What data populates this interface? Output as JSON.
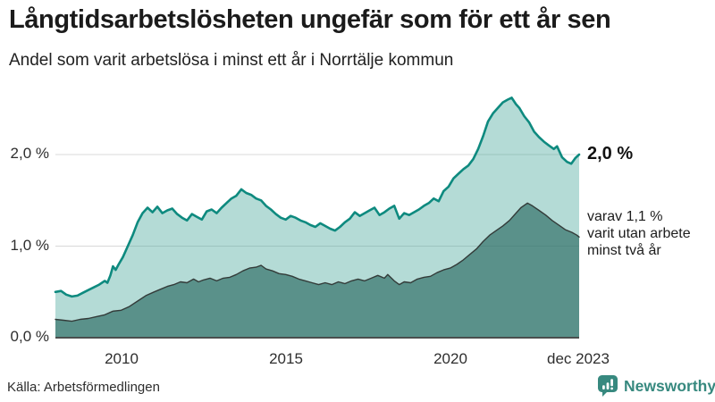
{
  "header": {
    "title": "Långtidsarbetslösheten ungefär som för ett år sen",
    "subtitle": "Andel som varit arbetslösa i minst ett år i Norrtälje kommun"
  },
  "footer": {
    "source": "Källa: Arbetsförmedlingen",
    "brand": "Newsworthy"
  },
  "chart_data": {
    "type": "area",
    "title": "Långtidsarbetslösheten ungefär som för ett år sen",
    "subtitle": "Andel som varit arbetslösa i minst ett år i Norrtälje kommun",
    "x_domain": [
      2008.0,
      2023.92
    ],
    "ylim": [
      0,
      2.72
    ],
    "grid": true,
    "x_ticks": [
      {
        "value": 2010,
        "label": "2010"
      },
      {
        "value": 2015,
        "label": "2015"
      },
      {
        "value": 2020,
        "label": "2020"
      },
      {
        "value": 2023.92,
        "label": "dec 2023"
      }
    ],
    "y_ticks": [
      {
        "value": 0,
        "label": "0,0 %"
      },
      {
        "value": 1,
        "label": "1,0 %"
      },
      {
        "value": 2,
        "label": "2,0 %"
      }
    ],
    "colors": {
      "grid": "#d8d8d8",
      "axis": "#4a4f4e",
      "accent_teal": "#0e8a7f",
      "brand_teal": "#37897f"
    },
    "annotations": {
      "end_total": "2,0 %",
      "end_subset": "varav 1,1 %\nvarit utan arbete\nminst två år"
    },
    "series": [
      {
        "name": "Andel arbetslösa minst ett år",
        "end_value": 2.0,
        "color": "#0e8a7f",
        "fill": "rgba(77,170,157,0.42)",
        "points": [
          [
            2008.0,
            0.5
          ],
          [
            2008.17,
            0.51
          ],
          [
            2008.33,
            0.47
          ],
          [
            2008.5,
            0.45
          ],
          [
            2008.67,
            0.46
          ],
          [
            2008.83,
            0.49
          ],
          [
            2009.0,
            0.52
          ],
          [
            2009.17,
            0.55
          ],
          [
            2009.33,
            0.58
          ],
          [
            2009.5,
            0.62
          ],
          [
            2009.58,
            0.6
          ],
          [
            2009.67,
            0.68
          ],
          [
            2009.75,
            0.78
          ],
          [
            2009.83,
            0.74
          ],
          [
            2009.92,
            0.8
          ],
          [
            2010.05,
            0.88
          ],
          [
            2010.2,
            1.0
          ],
          [
            2010.35,
            1.12
          ],
          [
            2010.5,
            1.26
          ],
          [
            2010.65,
            1.36
          ],
          [
            2010.8,
            1.42
          ],
          [
            2010.95,
            1.37
          ],
          [
            2011.1,
            1.43
          ],
          [
            2011.25,
            1.36
          ],
          [
            2011.4,
            1.39
          ],
          [
            2011.55,
            1.41
          ],
          [
            2011.7,
            1.35
          ],
          [
            2011.85,
            1.31
          ],
          [
            2012.0,
            1.28
          ],
          [
            2012.15,
            1.35
          ],
          [
            2012.3,
            1.32
          ],
          [
            2012.45,
            1.29
          ],
          [
            2012.6,
            1.38
          ],
          [
            2012.75,
            1.4
          ],
          [
            2012.9,
            1.36
          ],
          [
            2013.05,
            1.42
          ],
          [
            2013.2,
            1.47
          ],
          [
            2013.35,
            1.52
          ],
          [
            2013.5,
            1.55
          ],
          [
            2013.65,
            1.62
          ],
          [
            2013.8,
            1.58
          ],
          [
            2013.95,
            1.56
          ],
          [
            2014.1,
            1.52
          ],
          [
            2014.25,
            1.5
          ],
          [
            2014.4,
            1.44
          ],
          [
            2014.55,
            1.4
          ],
          [
            2014.7,
            1.35
          ],
          [
            2014.85,
            1.31
          ],
          [
            2015.0,
            1.29
          ],
          [
            2015.15,
            1.33
          ],
          [
            2015.3,
            1.31
          ],
          [
            2015.45,
            1.28
          ],
          [
            2015.6,
            1.26
          ],
          [
            2015.75,
            1.23
          ],
          [
            2015.9,
            1.21
          ],
          [
            2016.05,
            1.25
          ],
          [
            2016.2,
            1.22
          ],
          [
            2016.35,
            1.19
          ],
          [
            2016.5,
            1.17
          ],
          [
            2016.65,
            1.21
          ],
          [
            2016.8,
            1.26
          ],
          [
            2016.95,
            1.3
          ],
          [
            2017.1,
            1.37
          ],
          [
            2017.25,
            1.33
          ],
          [
            2017.4,
            1.36
          ],
          [
            2017.55,
            1.39
          ],
          [
            2017.7,
            1.42
          ],
          [
            2017.85,
            1.34
          ],
          [
            2018.0,
            1.37
          ],
          [
            2018.15,
            1.41
          ],
          [
            2018.3,
            1.44
          ],
          [
            2018.45,
            1.3
          ],
          [
            2018.6,
            1.36
          ],
          [
            2018.75,
            1.34
          ],
          [
            2018.9,
            1.37
          ],
          [
            2019.05,
            1.4
          ],
          [
            2019.2,
            1.44
          ],
          [
            2019.35,
            1.47
          ],
          [
            2019.5,
            1.52
          ],
          [
            2019.65,
            1.49
          ],
          [
            2019.8,
            1.6
          ],
          [
            2019.95,
            1.65
          ],
          [
            2020.1,
            1.74
          ],
          [
            2020.25,
            1.79
          ],
          [
            2020.4,
            1.84
          ],
          [
            2020.55,
            1.88
          ],
          [
            2020.7,
            1.95
          ],
          [
            2020.85,
            2.06
          ],
          [
            2021.0,
            2.2
          ],
          [
            2021.15,
            2.36
          ],
          [
            2021.3,
            2.45
          ],
          [
            2021.45,
            2.51
          ],
          [
            2021.6,
            2.57
          ],
          [
            2021.75,
            2.6
          ],
          [
            2021.87,
            2.62
          ],
          [
            2022.0,
            2.55
          ],
          [
            2022.1,
            2.51
          ],
          [
            2022.25,
            2.42
          ],
          [
            2022.4,
            2.35
          ],
          [
            2022.55,
            2.25
          ],
          [
            2022.7,
            2.19
          ],
          [
            2022.85,
            2.14
          ],
          [
            2023.0,
            2.1
          ],
          [
            2023.15,
            2.06
          ],
          [
            2023.25,
            2.09
          ],
          [
            2023.4,
            1.97
          ],
          [
            2023.55,
            1.92
          ],
          [
            2023.68,
            1.9
          ],
          [
            2023.8,
            1.96
          ],
          [
            2023.92,
            2.0
          ]
        ]
      },
      {
        "name": "Varav utan arbete minst två år",
        "end_value": 1.1,
        "color": "#333b39",
        "fill": "rgba(47,109,101,0.68)",
        "points": [
          [
            2008.0,
            0.2
          ],
          [
            2008.25,
            0.19
          ],
          [
            2008.5,
            0.18
          ],
          [
            2008.75,
            0.2
          ],
          [
            2009.0,
            0.21
          ],
          [
            2009.25,
            0.23
          ],
          [
            2009.5,
            0.25
          ],
          [
            2009.75,
            0.29
          ],
          [
            2010.0,
            0.3
          ],
          [
            2010.25,
            0.34
          ],
          [
            2010.5,
            0.4
          ],
          [
            2010.75,
            0.46
          ],
          [
            2011.0,
            0.5
          ],
          [
            2011.2,
            0.53
          ],
          [
            2011.4,
            0.56
          ],
          [
            2011.6,
            0.58
          ],
          [
            2011.8,
            0.61
          ],
          [
            2012.0,
            0.6
          ],
          [
            2012.2,
            0.64
          ],
          [
            2012.35,
            0.61
          ],
          [
            2012.5,
            0.63
          ],
          [
            2012.7,
            0.65
          ],
          [
            2012.9,
            0.62
          ],
          [
            2013.1,
            0.65
          ],
          [
            2013.3,
            0.66
          ],
          [
            2013.5,
            0.69
          ],
          [
            2013.7,
            0.73
          ],
          [
            2013.9,
            0.76
          ],
          [
            2014.1,
            0.77
          ],
          [
            2014.25,
            0.79
          ],
          [
            2014.4,
            0.75
          ],
          [
            2014.6,
            0.73
          ],
          [
            2014.8,
            0.7
          ],
          [
            2015.0,
            0.69
          ],
          [
            2015.2,
            0.67
          ],
          [
            2015.4,
            0.64
          ],
          [
            2015.6,
            0.62
          ],
          [
            2015.8,
            0.6
          ],
          [
            2016.0,
            0.58
          ],
          [
            2016.2,
            0.6
          ],
          [
            2016.4,
            0.58
          ],
          [
            2016.6,
            0.61
          ],
          [
            2016.8,
            0.59
          ],
          [
            2017.0,
            0.62
          ],
          [
            2017.2,
            0.64
          ],
          [
            2017.4,
            0.62
          ],
          [
            2017.6,
            0.65
          ],
          [
            2017.8,
            0.68
          ],
          [
            2018.0,
            0.65
          ],
          [
            2018.1,
            0.69
          ],
          [
            2018.3,
            0.62
          ],
          [
            2018.45,
            0.58
          ],
          [
            2018.6,
            0.61
          ],
          [
            2018.8,
            0.6
          ],
          [
            2019.0,
            0.64
          ],
          [
            2019.2,
            0.66
          ],
          [
            2019.4,
            0.67
          ],
          [
            2019.6,
            0.71
          ],
          [
            2019.8,
            0.74
          ],
          [
            2020.0,
            0.76
          ],
          [
            2020.2,
            0.8
          ],
          [
            2020.4,
            0.85
          ],
          [
            2020.6,
            0.91
          ],
          [
            2020.8,
            0.97
          ],
          [
            2021.0,
            1.05
          ],
          [
            2021.2,
            1.12
          ],
          [
            2021.4,
            1.17
          ],
          [
            2021.6,
            1.22
          ],
          [
            2021.8,
            1.28
          ],
          [
            2022.0,
            1.36
          ],
          [
            2022.15,
            1.42
          ],
          [
            2022.35,
            1.47
          ],
          [
            2022.5,
            1.44
          ],
          [
            2022.7,
            1.39
          ],
          [
            2022.9,
            1.34
          ],
          [
            2023.1,
            1.28
          ],
          [
            2023.3,
            1.23
          ],
          [
            2023.5,
            1.18
          ],
          [
            2023.7,
            1.15
          ],
          [
            2023.85,
            1.12
          ],
          [
            2023.92,
            1.1
          ]
        ]
      }
    ]
  }
}
